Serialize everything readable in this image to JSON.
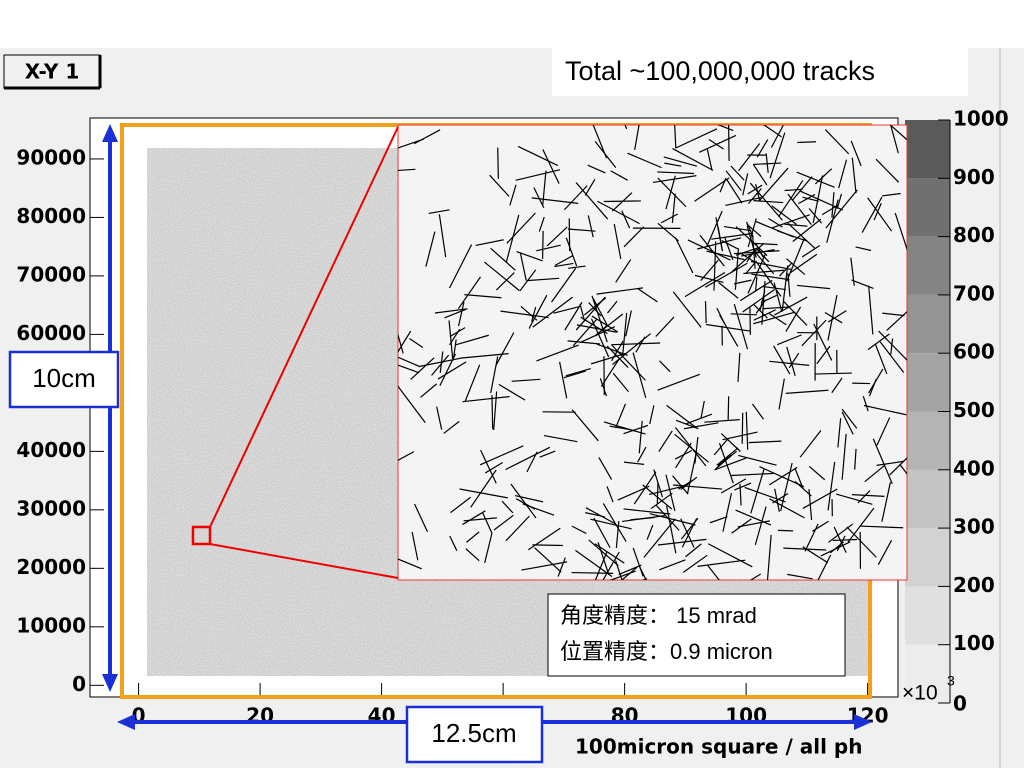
{
  "chart_data": {
    "type": "histogram2d",
    "title": "X-Y 1",
    "annotation": "Total ~100,000,000 tracks",
    "x_label": "100micron square / all ph",
    "xlim": [
      -8,
      125
    ],
    "xticks": [
      0,
      20,
      40,
      60,
      80,
      100,
      120
    ],
    "ylim": [
      -2000,
      97000
    ],
    "yticks": [
      0,
      10000,
      20000,
      30000,
      40000,
      50000,
      60000,
      70000,
      80000,
      90000
    ],
    "zlim": [
      0,
      1000
    ],
    "zticks": [
      0,
      100,
      200,
      300,
      400,
      500,
      600,
      700,
      800,
      900,
      1000
    ],
    "z_multiplier": "×10",
    "z_multiplier_exp": "3",
    "colorbar_colors": [
      "#ececec",
      "#e0e0e0",
      "#d2d2d2",
      "#c4c4c4",
      "#b4b4b4",
      "#a4a4a4",
      "#949494",
      "#848484",
      "#707070",
      "#5a5a5a"
    ],
    "height_label": "10cm",
    "width_label": "12.5cm",
    "resolution_lines": [
      "角度精度： 15 mrad",
      "位置精度：0.9 micron"
    ]
  }
}
